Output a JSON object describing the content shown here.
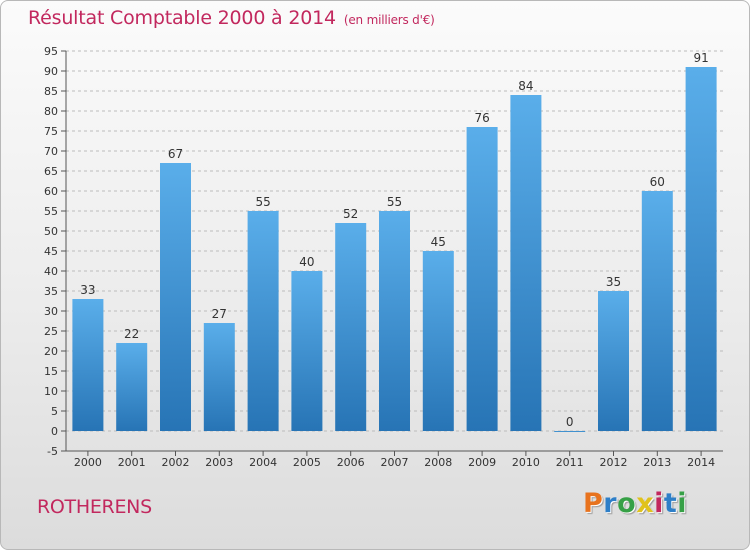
{
  "title": "Résultat Comptable 2000 à 2014",
  "subtitle": "(en milliers d'€)",
  "place": "ROTHERENS",
  "logo": {
    "text": "Proxiti",
    "colors": [
      "#e8731e",
      "#2e7fc8",
      "#36a046",
      "#e0c21d",
      "#c2285e",
      "#2e7fc8",
      "#36a046"
    ]
  },
  "colors": {
    "bar_top": "#5aaeea",
    "bar_bottom": "#2774b5",
    "title": "#c2285e",
    "grid": "#bcbcbc"
  },
  "chart_data": {
    "type": "bar",
    "categories": [
      "2000",
      "2001",
      "2002",
      "2003",
      "2004",
      "2005",
      "2006",
      "2007",
      "2008",
      "2009",
      "2010",
      "2011",
      "2012",
      "2013",
      "2014"
    ],
    "values": [
      33,
      22,
      67,
      27,
      55,
      40,
      52,
      55,
      45,
      76,
      84,
      0,
      35,
      60,
      91
    ],
    "ylim": [
      -5,
      95
    ],
    "yticks": [
      -5,
      0,
      5,
      10,
      15,
      20,
      25,
      30,
      35,
      40,
      45,
      50,
      55,
      60,
      65,
      70,
      75,
      80,
      85,
      90,
      95
    ],
    "grid": true,
    "data_labels": true
  }
}
